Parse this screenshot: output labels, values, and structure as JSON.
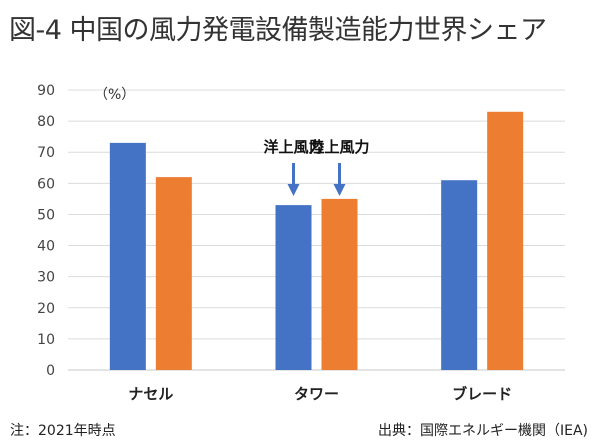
{
  "title": "図-4 中国の風力発電設備製造能力世界シェア",
  "chart_data": {
    "type": "bar",
    "unit_label": "（%）",
    "categories": [
      "ナセル",
      "タワー",
      "ブレード"
    ],
    "series": [
      {
        "name": "洋上風力",
        "color": "#4472c4",
        "values": [
          73,
          53,
          61
        ]
      },
      {
        "name": "陸上風力",
        "color": "#ed7d31",
        "values": [
          62,
          55,
          83
        ]
      }
    ],
    "ylim": [
      0,
      90
    ],
    "yticks": [
      0,
      10,
      20,
      30,
      40,
      50,
      60,
      70,
      80,
      90
    ],
    "grid": true,
    "annotations": [
      {
        "text": "洋上風力",
        "category": "タワー",
        "series": "洋上風力"
      },
      {
        "text": "陸上風力",
        "category": "タワー",
        "series": "陸上風力"
      }
    ]
  },
  "footer": {
    "note": "注：2021年時点",
    "source": "出典：国際エネルギー機関（IEA)"
  }
}
